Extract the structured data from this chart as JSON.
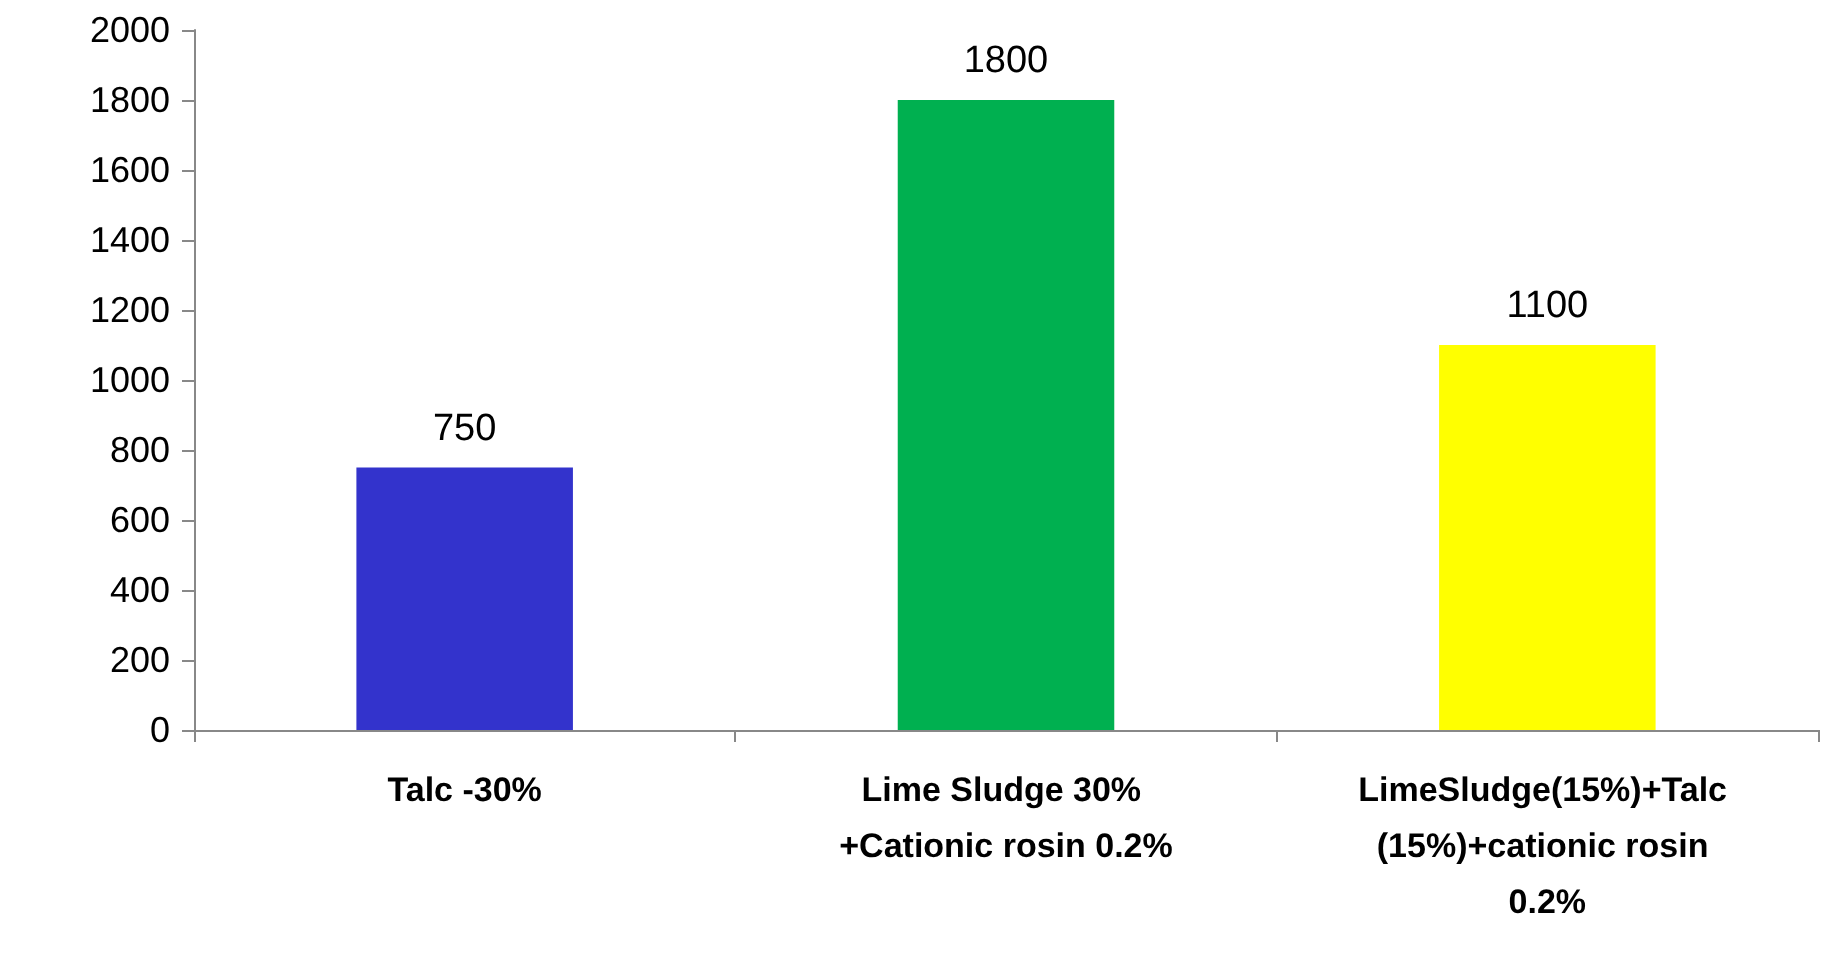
{
  "chart_data": {
    "type": "bar",
    "categories": [
      "Talc -30%",
      "Lime Sludge 30% +Cationic rosin 0.2%",
      "LimeSludge(15%)+Talc (15%)+cationic rosin 0.2%"
    ],
    "values": [
      750,
      1800,
      1100
    ],
    "colors": [
      "#3333cc",
      "#00b050",
      "#ffff00"
    ],
    "ylim": [
      0,
      2000
    ],
    "yticks": [
      0,
      200,
      400,
      600,
      800,
      1000,
      1200,
      1400,
      1600,
      1800,
      2000
    ],
    "data_labels": true,
    "grid": false
  }
}
